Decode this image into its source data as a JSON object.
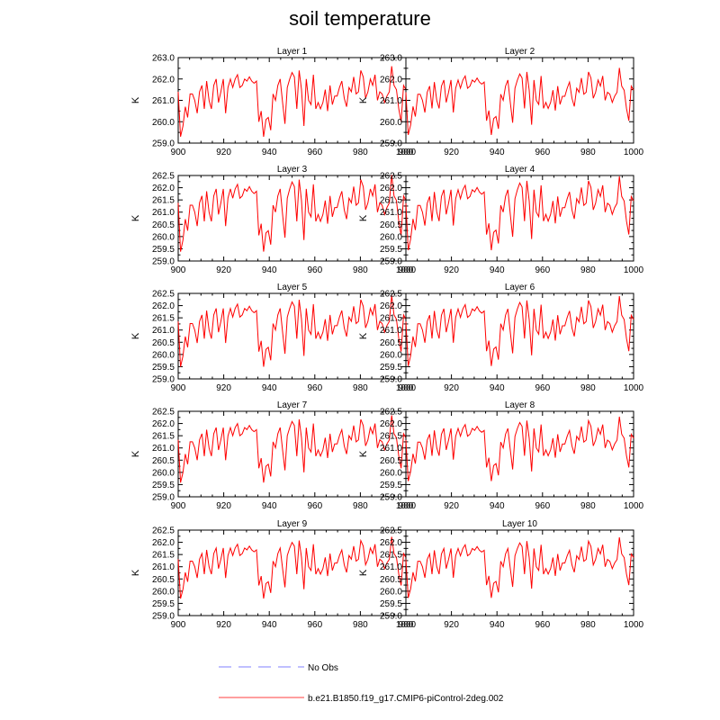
{
  "title": "soil temperature",
  "chart_data": {
    "type": "line",
    "x_range": [
      900,
      1000
    ],
    "x_ticks": [
      900,
      920,
      940,
      960,
      980,
      1000
    ],
    "ylabel": "K",
    "line_color": "#ff0000",
    "series_values": [
      261.4,
      259.3,
      259.8,
      260.7,
      260.2,
      261.3,
      261.3,
      261.0,
      260.4,
      261.4,
      261.7,
      260.6,
      261.9,
      261.0,
      260.6,
      261.7,
      262.0,
      260.9,
      261.4,
      262.0,
      260.4,
      261.6,
      262.0,
      261.6,
      262.0,
      262.2,
      261.6,
      261.7,
      262.0,
      261.9,
      262.1,
      261.9,
      261.8,
      261.9,
      260.0,
      260.5,
      259.3,
      260.1,
      260.2,
      259.6,
      261.3,
      261.0,
      261.7,
      262.0,
      260.9,
      259.9,
      261.6,
      262.0,
      262.3,
      262.1,
      260.6,
      262.4,
      261.5,
      259.8,
      262.0,
      261.0,
      260.8,
      262.2,
      260.6,
      260.9,
      260.6,
      260.9,
      261.5,
      260.5,
      261.7,
      260.8,
      261.2,
      261.2,
      261.6,
      261.9,
      261.1,
      260.7,
      261.6,
      261.4,
      262.1,
      261.3,
      261.4,
      262.4,
      262.1,
      261.1,
      261.4,
      262.0,
      261.7,
      262.2,
      261.0,
      261.4,
      261.3,
      260.9,
      261.2,
      261.4,
      262.6,
      261.7,
      261.5,
      260.6,
      260.0,
      261.7,
      261.5
    ]
  },
  "panels": [
    {
      "title": "Layer 1",
      "yticks": [
        "263.0",
        "262.0",
        "261.0",
        "260.0",
        "259.0"
      ],
      "ylim": [
        259.0,
        263.0
      ],
      "scale": 0.6,
      "offset": 0.45
    },
    {
      "title": "Layer 2",
      "yticks": [
        "263.0",
        "262.0",
        "261.0",
        "260.0",
        "259.0"
      ],
      "ylim": [
        259.0,
        263.0
      ],
      "scale": 0.57,
      "offset": 0.45
    },
    {
      "title": "Layer 3",
      "yticks": [
        "262.5",
        "262.0",
        "261.5",
        "261.0",
        "260.5",
        "260.0",
        "259.5",
        "259.0"
      ],
      "ylim": [
        259.0,
        262.5
      ],
      "scale": 0.57,
      "offset": 0.45
    },
    {
      "title": "Layer 4",
      "yticks": [
        "262.5",
        "262.0",
        "261.5",
        "261.0",
        "260.5",
        "260.0",
        "259.5",
        "259.0"
      ],
      "ylim": [
        259.0,
        262.5
      ],
      "scale": 0.55,
      "offset": 0.45
    },
    {
      "title": "Layer 5",
      "yticks": [
        "262.5",
        "262.0",
        "261.5",
        "261.0",
        "260.5",
        "260.0",
        "259.5",
        "259.0"
      ],
      "ylim": [
        259.0,
        262.5
      ],
      "scale": 0.53,
      "offset": 0.45
    },
    {
      "title": "Layer 6",
      "yticks": [
        "262.5",
        "262.0",
        "261.5",
        "261.0",
        "260.5",
        "260.0",
        "259.5",
        "259.0"
      ],
      "ylim": [
        259.0,
        262.5
      ],
      "scale": 0.52,
      "offset": 0.45
    },
    {
      "title": "Layer 7",
      "yticks": [
        "262.5",
        "262.0",
        "261.5",
        "261.0",
        "260.5",
        "260.0",
        "259.5",
        "259.0"
      ],
      "ylim": [
        259.0,
        262.5
      ],
      "scale": 0.5,
      "offset": 0.45
    },
    {
      "title": "Layer 8",
      "yticks": [
        "262.5",
        "262.0",
        "261.5",
        "261.0",
        "260.5",
        "260.0",
        "259.5",
        "259.0"
      ],
      "ylim": [
        259.0,
        262.5
      ],
      "scale": 0.48,
      "offset": 0.45
    },
    {
      "title": "Layer 9",
      "yticks": [
        "262.5",
        "262.0",
        "261.5",
        "261.0",
        "260.5",
        "260.0",
        "259.5",
        "259.0"
      ],
      "ylim": [
        259.0,
        262.5
      ],
      "scale": 0.46,
      "offset": 0.45
    },
    {
      "title": "Layer 10",
      "yticks": [
        "262.5",
        "262.0",
        "261.5",
        "261.0",
        "260.5",
        "260.0",
        "259.5",
        "259.0"
      ],
      "ylim": [
        259.0,
        262.5
      ],
      "scale": 0.45,
      "offset": 0.45
    }
  ],
  "legend": [
    {
      "label": "No Obs",
      "color": "#9999ff",
      "style": "dashed"
    },
    {
      "label": "b.e21.B1850.f19_g17.CMIP6-piControl-2deg.002",
      "color": "#ff6666",
      "style": "solid"
    }
  ]
}
